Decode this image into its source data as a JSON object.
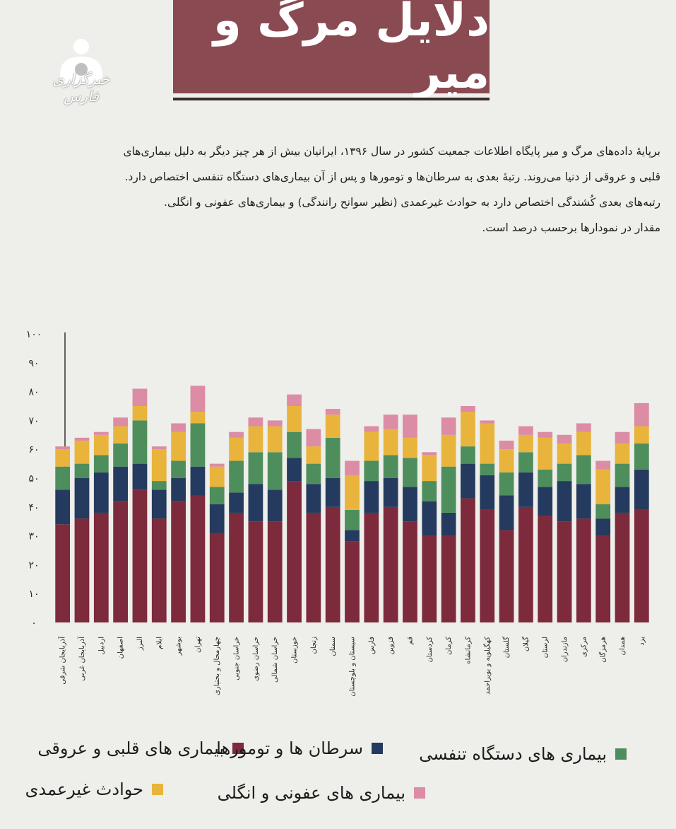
{
  "header": {
    "title": "دلایل مرگ و میر",
    "logo_text": "خبرگزاری فارس"
  },
  "intro": {
    "lines": [
      "برپایهٔ داده‌های مرگ و میر پایگاه اطلاعات جمعیت کشور در سال ۱۳۹۶، ایرانیان بیش از هر چیز دیگر به دلیل بیماری‌های",
      "قلبی و عروقی از دنیا می‌روند. رتبهٔ بعدی به سرطان‌ها و تومورها و پس از آن بیماری‌های دستگاه تنفسی اختصاص دارد.",
      "رتبه‌های بعدی کُشندگی اختصاص دارد به حوادث غیرعمدی (نظیر سوانح رانندگی) و بیماری‌های عفونی و انگلی.",
      "مقدار در نمودارها برحسب درصد است."
    ]
  },
  "colors": {
    "cardio": "#7d2a3c",
    "cancer": "#243a5e",
    "respiratory": "#4e8e5c",
    "accidents": "#e8b43c",
    "infectious": "#dc8ca4",
    "axis": "#333333"
  },
  "legend": [
    {
      "key": "cardio",
      "label": "بیماری های قلبی و عروقی"
    },
    {
      "key": "cancer",
      "label": "سرطان ها و تومورها"
    },
    {
      "key": "respiratory",
      "label": "بیماری های دستگاه تنفسی"
    },
    {
      "key": "accidents",
      "label": "حوادث غیرعمدی"
    },
    {
      "key": "infectious",
      "label": "بیماری های عفونی و انگلی"
    }
  ],
  "chart_data": {
    "type": "bar",
    "stacked": true,
    "ylim": [
      0,
      100
    ],
    "yticks": [
      "۰",
      "۱۰",
      "۲۰",
      "۳۰",
      "۴۰",
      "۵۰",
      "۶۰",
      "۷۰",
      "۸۰",
      "۹۰",
      "۱۰۰"
    ],
    "categories": [
      "آذربایجان شرقی",
      "آذربایجان غربی",
      "اردبیل",
      "اصفهان",
      "البرز",
      "ایلام",
      "بوشهر",
      "تهران",
      "چهارمحال و بختیاری",
      "خراسان جنوبی",
      "خراسان رضوی",
      "خراسان شمالی",
      "خوزستان",
      "زنجان",
      "سمنان",
      "سیستان و بلوچستان",
      "فارس",
      "قزوین",
      "قم",
      "کردستان",
      "کرمان",
      "کرمانشاه",
      "کهگیلویه و بویراحمد",
      "گلستان",
      "گیلان",
      "لرستان",
      "مازندران",
      "مرکزی",
      "هرمزگان",
      "همدان",
      "یزد"
    ],
    "series": [
      {
        "key": "cardio",
        "name": "بیماری های قلبی و عروقی",
        "values": [
          34,
          36,
          38,
          42,
          46,
          36,
          42,
          44,
          31,
          38,
          35,
          35,
          49,
          38,
          40,
          28,
          38,
          40,
          35,
          30,
          30,
          43,
          39,
          32,
          40,
          37,
          35,
          36,
          30,
          38,
          39
        ]
      },
      {
        "key": "cancer",
        "name": "سرطان ها و تومورها",
        "values": [
          12,
          14,
          14,
          12,
          9,
          10,
          8,
          10,
          10,
          7,
          13,
          11,
          8,
          10,
          10,
          4,
          11,
          10,
          12,
          12,
          8,
          12,
          12,
          12,
          12,
          10,
          14,
          12,
          6,
          9,
          14
        ]
      },
      {
        "key": "respiratory",
        "name": "بیماری های دستگاه تنفسی",
        "values": [
          8,
          5,
          6,
          8,
          15,
          3,
          6,
          15,
          6,
          11,
          11,
          13,
          9,
          7,
          14,
          7,
          7,
          8,
          10,
          7,
          16,
          6,
          4,
          8,
          7,
          6,
          6,
          10,
          5,
          8,
          9
        ]
      },
      {
        "key": "accidents",
        "name": "حوادث غیرعمدی",
        "values": [
          6,
          8,
          7,
          6,
          5,
          11,
          10,
          4,
          7,
          8,
          9,
          9,
          9,
          6,
          8,
          12,
          10,
          9,
          7,
          9,
          11,
          12,
          14,
          8,
          6,
          11,
          7,
          8,
          12,
          7,
          6
        ]
      },
      {
        "key": "infectious",
        "name": "بیماری های عفونی و انگلی",
        "values": [
          1,
          1,
          1,
          3,
          6,
          1,
          3,
          9,
          1,
          2,
          3,
          2,
          4,
          6,
          2,
          5,
          2,
          5,
          8,
          1,
          6,
          2,
          1,
          3,
          3,
          2,
          3,
          3,
          3,
          4,
          8
        ]
      }
    ]
  }
}
